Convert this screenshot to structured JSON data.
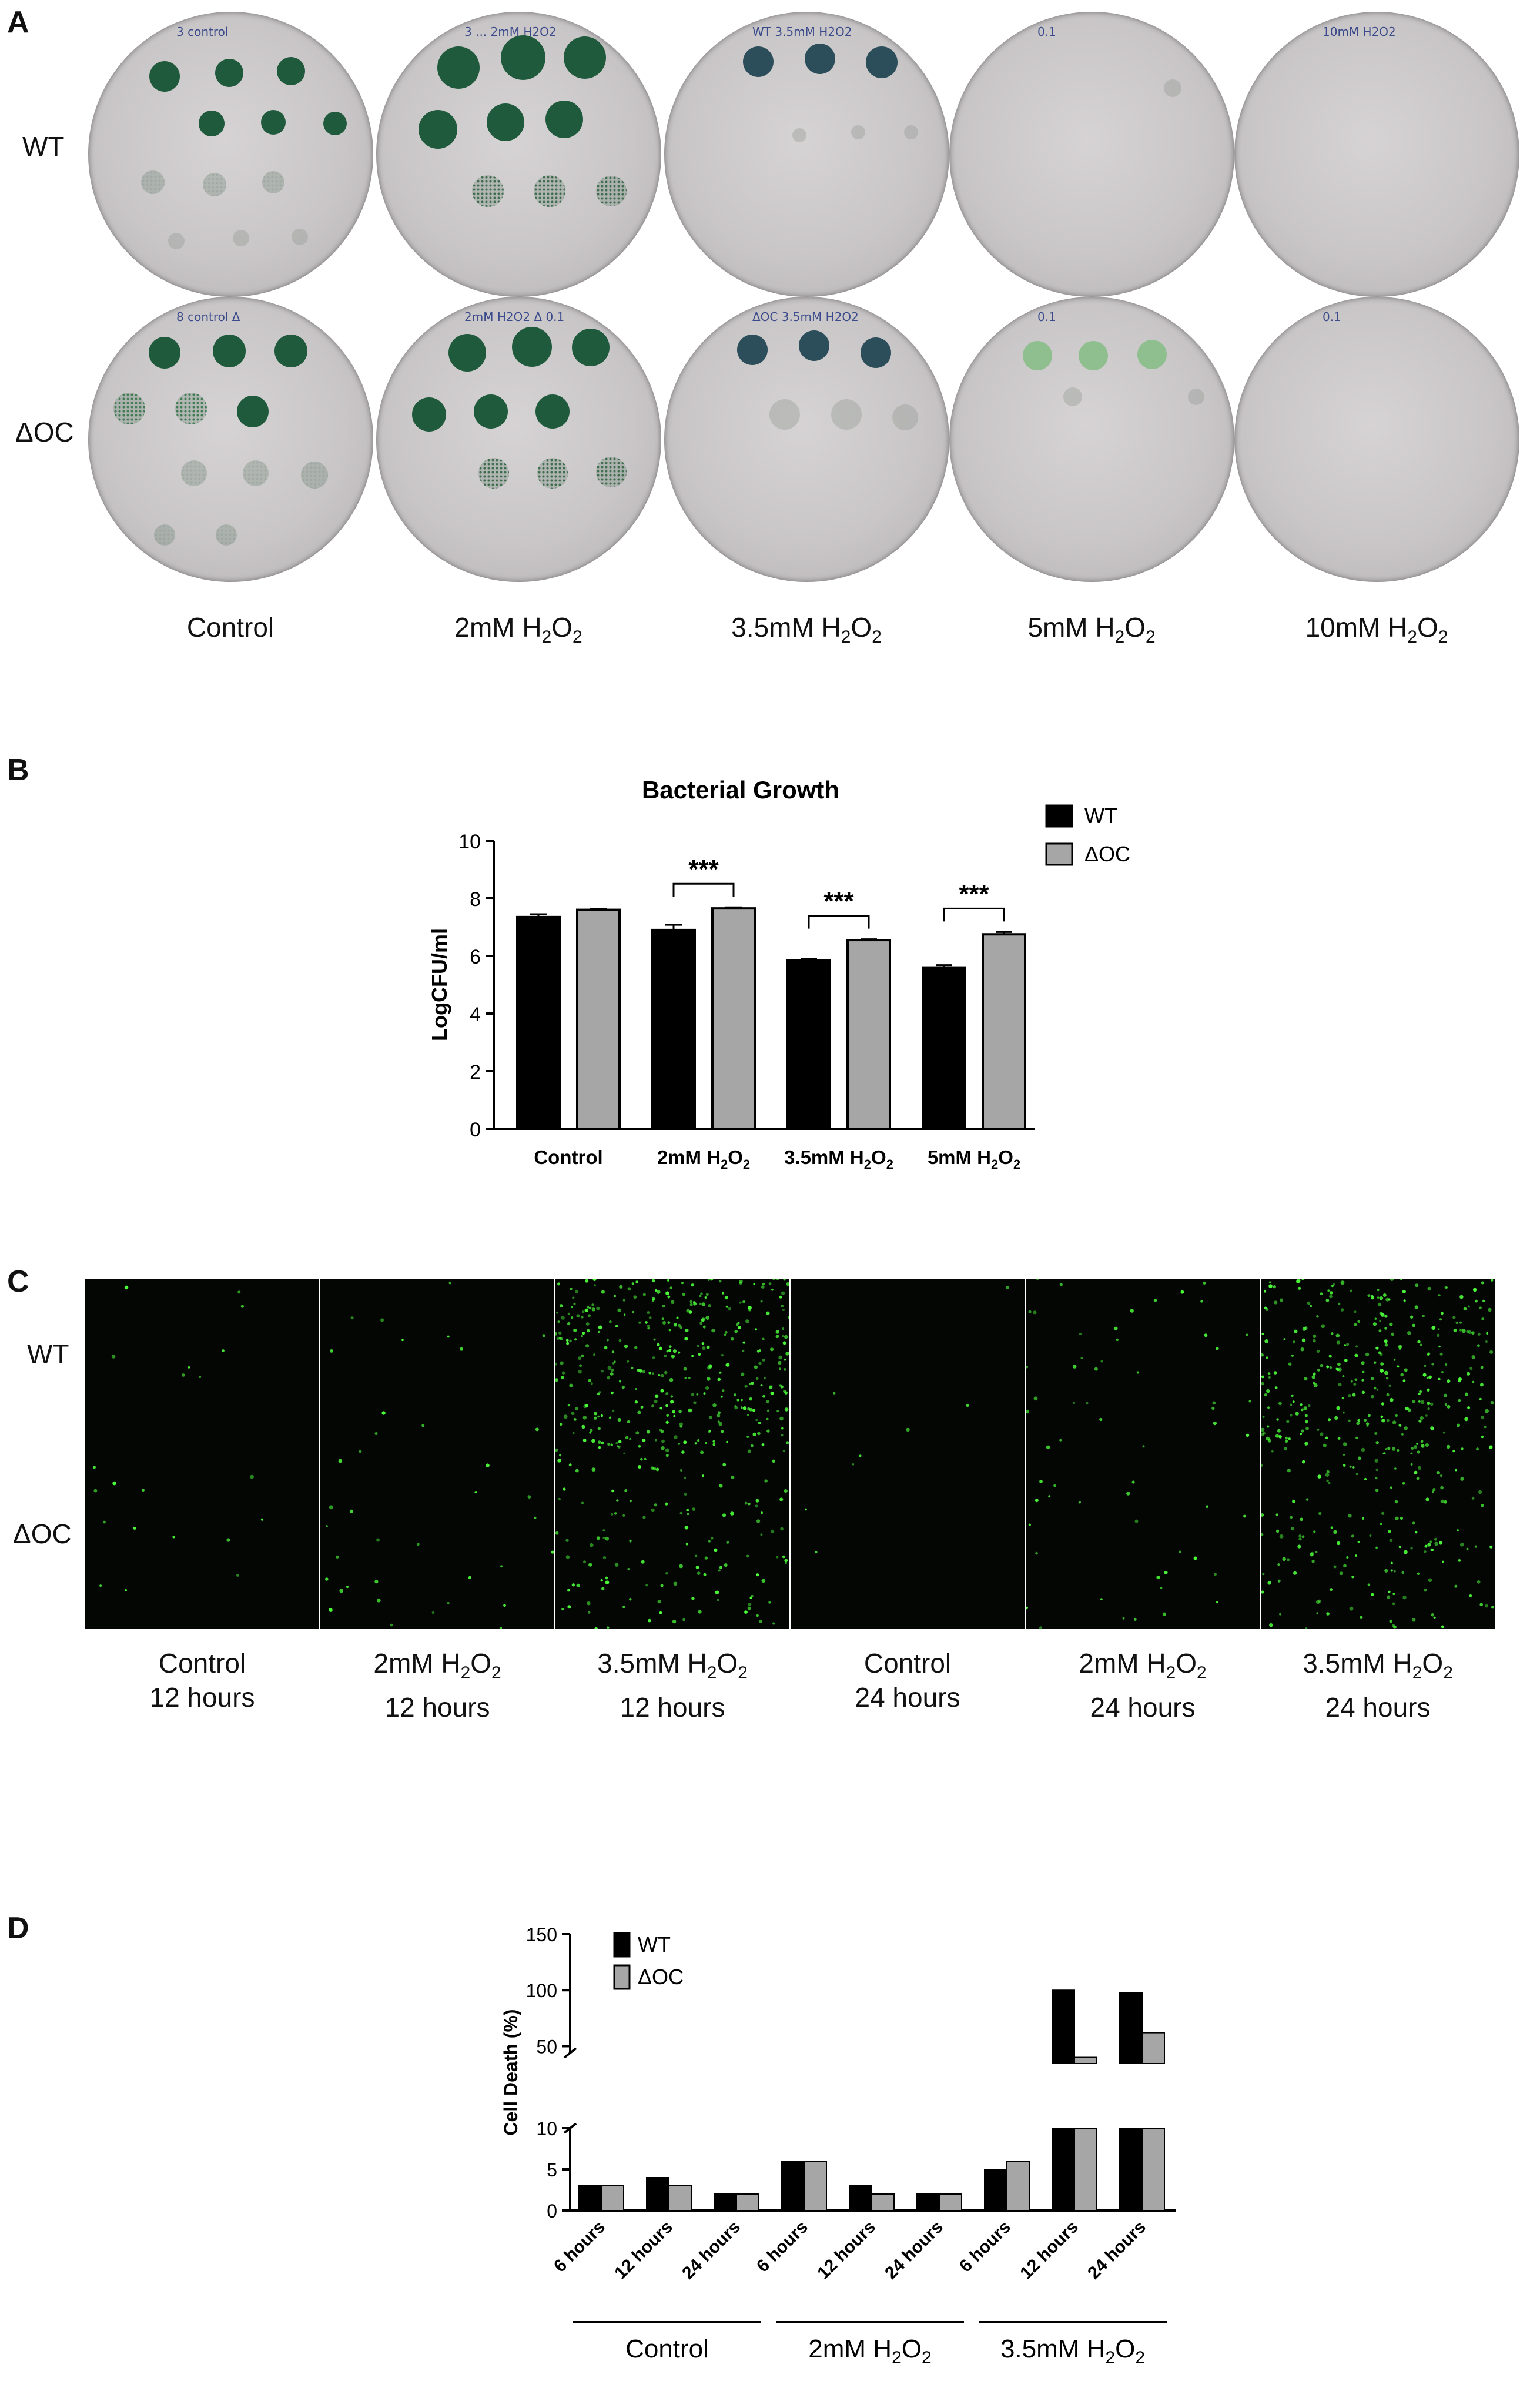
{
  "panel_a": {
    "letter": "A",
    "row_labels": [
      "WT",
      "ΔOC"
    ],
    "columns": [
      {
        "base": "Control",
        "has_h2o2": false
      },
      {
        "base": "2mM H",
        "has_h2o2": true
      },
      {
        "base": "3.5mM H",
        "has_h2o2": true
      },
      {
        "base": "5mM H",
        "has_h2o2": true
      },
      {
        "base": "10mM H",
        "has_h2o2": true
      }
    ],
    "plate_notes": {
      "wt": [
        "3 control",
        "3 ... 2mM H2O2",
        "WT 3.5mM H2O2",
        "0.1",
        "10mM H2O2"
      ],
      "oc": [
        "8 control Δ",
        "2mM H2O2 Δ 0.1",
        "ΔOC 3.5mM H2O2",
        "0.1",
        "0.1"
      ]
    }
  },
  "panel_b": {
    "letter": "B",
    "chart_data": {
      "type": "bar",
      "title": "Bacterial Growth",
      "ylabel": "LogCFU/ml",
      "ylim": [
        0,
        10
      ],
      "yticks": [
        0,
        2,
        4,
        6,
        8,
        10
      ],
      "categories": [
        "Control",
        "2mM H2O2",
        "3.5mM H2O2",
        "5mM H2O2"
      ],
      "series": [
        {
          "name": "WT",
          "values": [
            7.35,
            6.9,
            5.85,
            5.6
          ],
          "error": [
            0.1,
            0.18,
            0.05,
            0.08
          ],
          "color": "#000000"
        },
        {
          "name": "ΔOC",
          "values": [
            7.6,
            7.65,
            6.55,
            6.75
          ],
          "error": [
            0.03,
            0.04,
            0.03,
            0.08
          ],
          "color": "#a6a6a6"
        }
      ],
      "significance": [
        {
          "category": "2mM H2O2",
          "label": "***"
        },
        {
          "category": "3.5mM H2O2",
          "label": "***"
        },
        {
          "category": "5mM H2O2",
          "label": "***"
        }
      ],
      "legend": "top-right",
      "grid": false
    }
  },
  "panel_c": {
    "letter": "C",
    "row_labels": [
      "WT",
      "ΔOC"
    ],
    "columns": [
      {
        "pre": "Control",
        "sub": "",
        "post": "",
        "time": "12 hours"
      },
      {
        "pre": "2mM H",
        "sub": "2",
        "post": "O",
        "time": "12 hours"
      },
      {
        "pre": "3.5mM H",
        "sub": "2",
        "post": "O",
        "time": "12 hours"
      },
      {
        "pre": "Control",
        "sub": "",
        "post": "",
        "time": "24 hours"
      },
      {
        "pre": "2mM H",
        "sub": "2",
        "post": "O",
        "time": "24 hours"
      },
      {
        "pre": "3.5mM H",
        "sub": "2",
        "post": "O",
        "time": "24 hours"
      }
    ],
    "fluorescence_density": {
      "wt": [
        0.02,
        0.03,
        0.9,
        0.01,
        0.08,
        0.75
      ],
      "oc": [
        0.03,
        0.06,
        0.3,
        0.01,
        0.06,
        0.35
      ]
    },
    "fluorescence_color": "#4dff3a"
  },
  "panel_d": {
    "letter": "D",
    "chart_data": {
      "type": "bar",
      "ylabel": "Cell Death (%)",
      "broken_axis": true,
      "lower_ylim": [
        0,
        10
      ],
      "lower_yticks": [
        0,
        5,
        10
      ],
      "upper_ylim": [
        45,
        150
      ],
      "upper_yticks": [
        50,
        100,
        150
      ],
      "groups": [
        "Control",
        "2mM H2O2",
        "3.5mM H2O2"
      ],
      "categories": [
        "6 hours",
        "12 hours",
        "24 hours",
        "6 hours",
        "12 hours",
        "24 hours",
        "6 hours",
        "12 hours",
        "24 hours"
      ],
      "series": [
        {
          "name": "WT",
          "values": [
            3,
            4,
            2,
            6,
            3,
            2,
            5,
            100,
            98
          ],
          "color": "#000000"
        },
        {
          "name": "ΔOC",
          "values": [
            3,
            3,
            2,
            6,
            2,
            2,
            6,
            40,
            62
          ],
          "color": "#a6a6a6"
        }
      ],
      "legend": "top-left",
      "grid": false
    }
  }
}
